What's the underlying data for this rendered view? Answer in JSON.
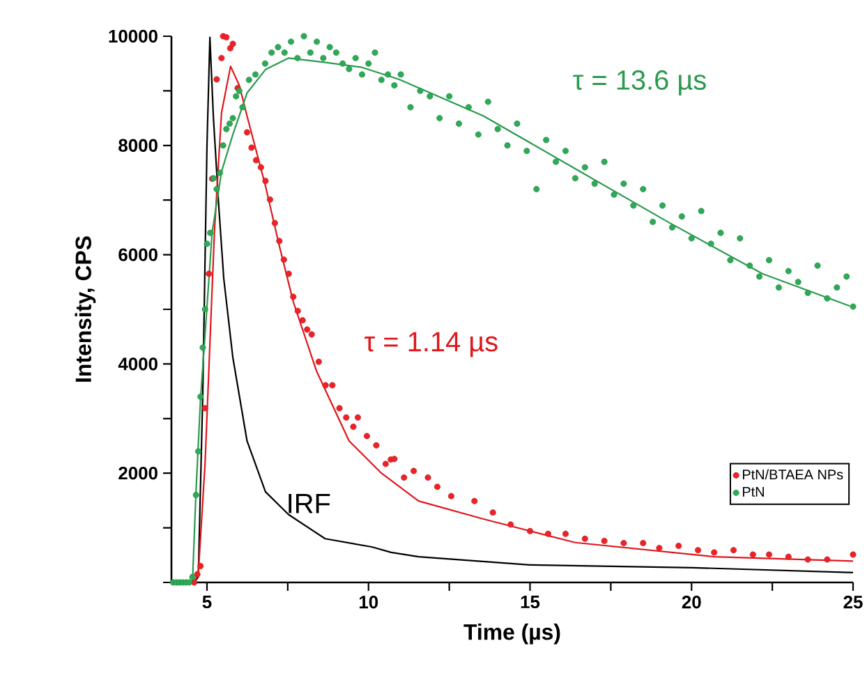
{
  "chart_data": {
    "type": "scatter",
    "xlabel": "Time (µs)",
    "ylabel": "Intensity, CPS",
    "xlim": [
      3.9,
      25
    ],
    "ylim": [
      0,
      10000
    ],
    "xticks": [
      5,
      {
        "value": 7.5,
        "label": null
      },
      10,
      {
        "value": 12.5,
        "label": null
      },
      15,
      {
        "value": 17.5,
        "label": null
      },
      20,
      {
        "value": 22.5,
        "label": null
      },
      25
    ],
    "yticks": [
      {
        "value": 0,
        "label": null
      },
      {
        "value": 1000,
        "label": null
      },
      2000,
      {
        "value": 3000,
        "label": null
      },
      4000,
      {
        "value": 5000,
        "label": null
      },
      6000,
      {
        "value": 7000,
        "label": null
      },
      8000,
      {
        "value": 9000,
        "label": null
      },
      10000
    ],
    "legend": "bottom right",
    "line_style": "solid",
    "series": [
      {
        "name": "PtN/BTAEA NPs",
        "marker": "circle",
        "color": "#ec2227",
        "x": [
          4.6,
          4.7,
          4.8,
          4.94,
          5.06,
          5.16,
          5.3,
          5.45,
          5.5,
          5.6,
          5.72,
          5.8,
          5.95,
          6.24,
          6.38,
          6.52,
          6.67,
          6.81,
          6.95,
          7.1,
          7.24,
          7.38,
          7.53,
          7.67,
          7.81,
          7.96,
          8.1,
          8.24,
          8.46,
          8.67,
          8.88,
          9.1,
          9.31,
          9.53,
          9.67,
          9.95,
          10.24,
          10.53,
          10.69,
          10.8,
          11.1,
          11.4,
          11.84,
          12.13,
          12.56,
          13.28,
          13.85,
          14.4,
          15.0,
          15.56,
          16.1,
          16.7,
          17.3,
          17.9,
          18.5,
          19.0,
          19.6,
          20.2,
          20.7,
          21.3,
          21.9,
          22.4,
          23.0,
          23.6,
          24.2,
          25.0
        ],
        "values": [
          0,
          150,
          300,
          3190,
          5650,
          7390,
          9210,
          9600,
          10000,
          9980,
          9780,
          9860,
          9050,
          8240,
          7960,
          7730,
          7600,
          7350,
          7010,
          6580,
          6250,
          5910,
          5650,
          5230,
          4970,
          4800,
          4630,
          4540,
          4040,
          3610,
          3610,
          3190,
          3020,
          2850,
          3020,
          2680,
          2510,
          2170,
          2250,
          2260,
          1920,
          2040,
          1920,
          1750,
          1580,
          1490,
          1280,
          1060,
          940,
          890,
          890,
          800,
          760,
          720,
          720,
          630,
          670,
          590,
          550,
          590,
          510,
          510,
          470,
          420,
          420,
          510
        ]
      },
      {
        "name": "PtN",
        "marker": "circle",
        "color": "#2daa55",
        "x": [
          3.95,
          4.05,
          4.15,
          4.25,
          4.35,
          4.45,
          4.55,
          4.66,
          4.73,
          4.8,
          4.87,
          4.94,
          5.0,
          5.1,
          5.2,
          5.3,
          5.4,
          5.5,
          5.6,
          5.7,
          5.8,
          5.9,
          6.0,
          6.1,
          6.3,
          6.5,
          6.8,
          7.0,
          7.2,
          7.4,
          7.6,
          7.8,
          8.0,
          8.2,
          8.4,
          8.6,
          8.8,
          9.0,
          9.2,
          9.4,
          9.6,
          9.8,
          10.0,
          10.2,
          10.4,
          10.6,
          10.8,
          11.0,
          11.3,
          11.6,
          11.9,
          12.2,
          12.5,
          12.8,
          13.1,
          13.4,
          13.7,
          14.0,
          14.3,
          14.6,
          14.9,
          15.2,
          15.5,
          15.8,
          16.1,
          16.4,
          16.7,
          17.0,
          17.3,
          17.6,
          17.9,
          18.2,
          18.5,
          18.8,
          19.1,
          19.4,
          19.7,
          20.0,
          20.3,
          20.6,
          20.9,
          21.2,
          21.5,
          21.8,
          22.1,
          22.4,
          22.7,
          23.0,
          23.3,
          23.6,
          23.9,
          24.2,
          24.5,
          24.8,
          25.0
        ],
        "values": [
          0,
          0,
          0,
          0,
          0,
          0,
          100,
          1600,
          2400,
          3400,
          4300,
          5000,
          6200,
          6400,
          7400,
          7200,
          7500,
          8000,
          8300,
          8400,
          8500,
          8900,
          9000,
          8700,
          9200,
          9300,
          9500,
          9700,
          9800,
          9700,
          9900,
          9600,
          10000,
          9700,
          9900,
          9600,
          9800,
          9700,
          9500,
          9400,
          9600,
          9300,
          9500,
          9700,
          9200,
          9300,
          9100,
          9300,
          8700,
          9000,
          8900,
          8500,
          8900,
          8400,
          8700,
          8200,
          8800,
          8300,
          8000,
          8400,
          7900,
          7200,
          8100,
          7700,
          7900,
          7400,
          7600,
          7300,
          7700,
          7100,
          7300,
          6900,
          7200,
          6600,
          6900,
          6500,
          6700,
          6300,
          6800,
          6200,
          6400,
          5900,
          6300,
          5800,
          5600,
          5900,
          5400,
          5700,
          5500,
          5300,
          5800,
          5200,
          5400,
          5600,
          5050
        ]
      },
      {
        "name": "IRF",
        "type": "line",
        "marker": "none",
        "color": "#000000",
        "x": [
          3.9,
          4.6,
          4.73,
          4.87,
          5.0,
          5.09,
          5.2,
          5.37,
          5.52,
          5.8,
          6.24,
          6.81,
          7.53,
          8.66,
          10.1,
          10.7,
          11.55,
          15.0,
          20.03,
          25.0
        ],
        "values": [
          0,
          0,
          100,
          3450,
          8000,
          9980,
          8500,
          6840,
          5560,
          4120,
          2590,
          1660,
          1240,
          800,
          650,
          550,
          470,
          320,
          270,
          180
        ]
      },
      {
        "name": "τ = 1.14 µs",
        "type": "line",
        "marker": "none",
        "color": "#e0161c",
        "x": [
          4.6,
          4.73,
          4.94,
          5.23,
          5.45,
          5.73,
          6.0,
          6.24,
          6.81,
          7.24,
          7.67,
          8.39,
          9.4,
          10.4,
          11.55,
          13.56,
          16.4,
          20.7,
          25.0
        ],
        "values": [
          0,
          150,
          2170,
          6410,
          8600,
          9450,
          9100,
          8540,
          7260,
          6160,
          5140,
          3870,
          2590,
          2000,
          1490,
          1160,
          730,
          470,
          390
        ]
      },
      {
        "name": "τ = 13.6 µs",
        "type": "line",
        "marker": "none",
        "color": "#2a9a4e",
        "x": [
          4.55,
          4.66,
          4.8,
          4.94,
          5.16,
          5.45,
          5.8,
          6.24,
          6.81,
          7.53,
          8.67,
          9.8,
          10.95,
          13.56,
          16.44,
          19.3,
          22.2,
          24.9
        ],
        "values": [
          0,
          1660,
          3360,
          4540,
          6410,
          7520,
          8200,
          8960,
          9390,
          9600,
          9520,
          9430,
          9210,
          8540,
          7560,
          6590,
          5650,
          5060
        ]
      }
    ]
  }
}
